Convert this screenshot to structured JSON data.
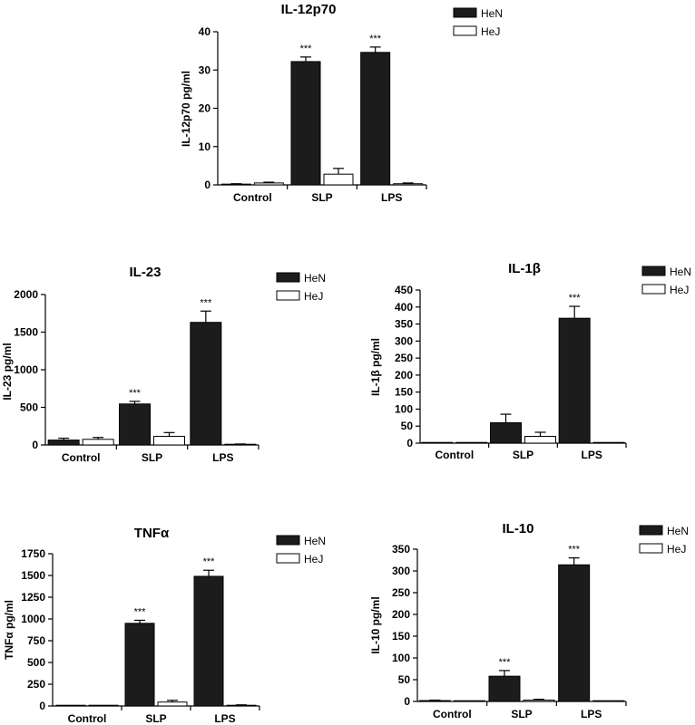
{
  "colors": {
    "HeN": "#1c1c1c",
    "HeJ": "#ffffff",
    "outline": "#000000"
  },
  "chart_data": [
    {
      "id": "il12p70",
      "type": "bar",
      "title": "IL-12p70",
      "ylabel": "IL-12p70 pg/ml",
      "xlabel": "",
      "categories": [
        "Control",
        "SLP",
        "LPS"
      ],
      "ylim": [
        0,
        40
      ],
      "yticks": [
        0,
        10,
        20,
        30,
        40
      ],
      "legend": [
        "HeN",
        "HeJ"
      ],
      "legend_position": "top-right",
      "series": [
        {
          "name": "HeN",
          "values": [
            0.2,
            32.2,
            34.6
          ],
          "errors": [
            0.1,
            1.2,
            1.4
          ],
          "significance": [
            "",
            "***",
            "***"
          ]
        },
        {
          "name": "HeJ",
          "values": [
            0.5,
            2.8,
            0.3
          ],
          "errors": [
            0.2,
            1.5,
            0.2
          ],
          "significance": [
            "",
            "",
            ""
          ]
        }
      ]
    },
    {
      "id": "il23",
      "type": "bar",
      "title": "IL-23",
      "ylabel": "IL-23 pg/ml",
      "xlabel": "",
      "categories": [
        "Control",
        "SLP",
        "LPS"
      ],
      "ylim": [
        0,
        2000
      ],
      "yticks": [
        0,
        500,
        1000,
        1500,
        2000
      ],
      "legend": [
        "HeN",
        "HeJ"
      ],
      "legend_position": "top-right",
      "series": [
        {
          "name": "HeN",
          "values": [
            65,
            545,
            1630
          ],
          "errors": [
            25,
            35,
            150
          ],
          "significance": [
            "",
            "***",
            "***"
          ]
        },
        {
          "name": "HeJ",
          "values": [
            75,
            115,
            8
          ],
          "errors": [
            25,
            50,
            5
          ],
          "significance": [
            "",
            "",
            ""
          ]
        }
      ]
    },
    {
      "id": "il1b",
      "type": "bar",
      "title": "IL-1β",
      "ylabel": "IL-1β pg/ml",
      "xlabel": "",
      "categories": [
        "Control",
        "SLP",
        "LPS"
      ],
      "ylim": [
        0,
        450
      ],
      "yticks": [
        0,
        50,
        100,
        150,
        200,
        250,
        300,
        350,
        400,
        450
      ],
      "legend": [
        "HeN",
        "HeJ"
      ],
      "legend_position": "top-right",
      "series": [
        {
          "name": "HeN",
          "values": [
            0,
            60,
            367
          ],
          "errors": [
            0,
            25,
            35
          ],
          "significance": [
            "",
            "",
            "***"
          ]
        },
        {
          "name": "HeJ",
          "values": [
            0,
            20,
            0
          ],
          "errors": [
            0,
            12,
            0
          ],
          "significance": [
            "",
            "",
            ""
          ]
        }
      ]
    },
    {
      "id": "tnfa",
      "type": "bar",
      "title": "TNFα",
      "ylabel": "TNFα pg/ml",
      "xlabel": "",
      "categories": [
        "Control",
        "SLP",
        "LPS"
      ],
      "ylim": [
        0,
        1750
      ],
      "yticks": [
        0,
        250,
        500,
        750,
        1000,
        1250,
        1500,
        1750
      ],
      "legend": [
        "HeN",
        "HeJ"
      ],
      "legend_position": "top-right",
      "series": [
        {
          "name": "HeN",
          "values": [
            0,
            950,
            1490
          ],
          "errors": [
            0,
            35,
            70
          ],
          "significance": [
            "",
            "***",
            "***"
          ]
        },
        {
          "name": "HeJ",
          "values": [
            0,
            45,
            8
          ],
          "errors": [
            0,
            20,
            5
          ],
          "significance": [
            "",
            "",
            ""
          ]
        }
      ]
    },
    {
      "id": "il10",
      "type": "bar",
      "title": "IL-10",
      "ylabel": "IL-10 pg/ml",
      "xlabel": "",
      "categories": [
        "Control",
        "SLP",
        "LPS"
      ],
      "ylim": [
        0,
        350
      ],
      "yticks": [
        0,
        50,
        100,
        150,
        200,
        250,
        300,
        350
      ],
      "legend": [
        "HeN",
        "HeJ"
      ],
      "legend_position": "top-right",
      "series": [
        {
          "name": "HeN",
          "values": [
            2,
            58,
            314
          ],
          "errors": [
            1,
            13,
            16
          ],
          "significance": [
            "",
            "***",
            "***"
          ]
        },
        {
          "name": "HeJ",
          "values": [
            0,
            3,
            0
          ],
          "errors": [
            0,
            2,
            0
          ],
          "significance": [
            "",
            "",
            ""
          ]
        }
      ]
    }
  ]
}
